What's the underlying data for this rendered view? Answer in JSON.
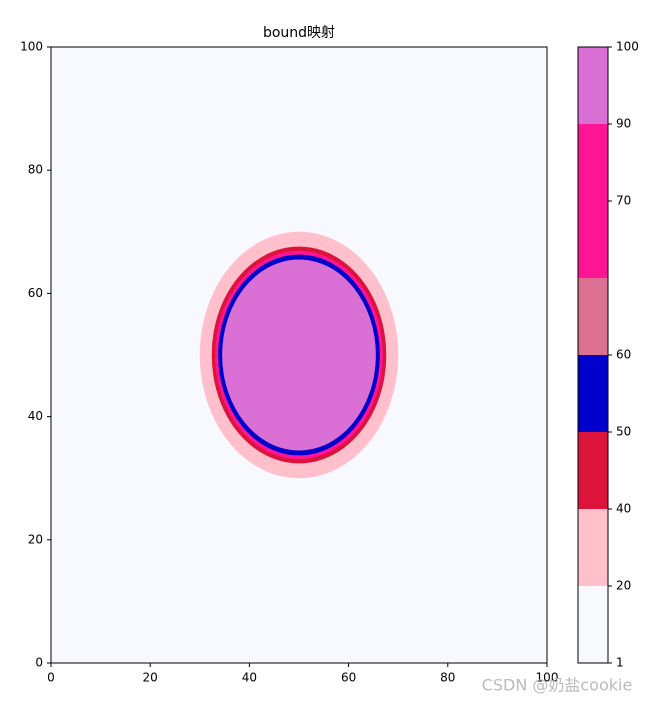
{
  "chart_data": {
    "type": "heatmap",
    "title": "bound映射",
    "xlim": [
      0,
      100
    ],
    "ylim": [
      0,
      100
    ],
    "xticks": [
      0,
      20,
      40,
      60,
      80,
      100
    ],
    "yticks": [
      0,
      20,
      40,
      60,
      80,
      100
    ],
    "background_value": 1,
    "center": [
      50,
      50
    ],
    "regions": [
      {
        "value": 20,
        "rx": 20,
        "ry": 20
      },
      {
        "value": 45,
        "rx": 17.6,
        "ry": 17.6
      },
      {
        "value": 75,
        "rx": 16.9,
        "ry": 16.9
      },
      {
        "value": 55,
        "rx": 16.3,
        "ry": 16.3
      },
      {
        "value": 95,
        "rx": 15.5,
        "ry": 15.5
      }
    ],
    "colorbar": {
      "boundaries": [
        1,
        20,
        40,
        50,
        60,
        null,
        70,
        90,
        100
      ],
      "colors": [
        "#f8f8ff",
        "#ffc0cb",
        "#dc143c",
        "#0000cd",
        "#db7093",
        "#ff1493",
        "#ff1493",
        "#da70d6"
      ]
    },
    "watermark": "CSDN @奶盐cookie"
  }
}
